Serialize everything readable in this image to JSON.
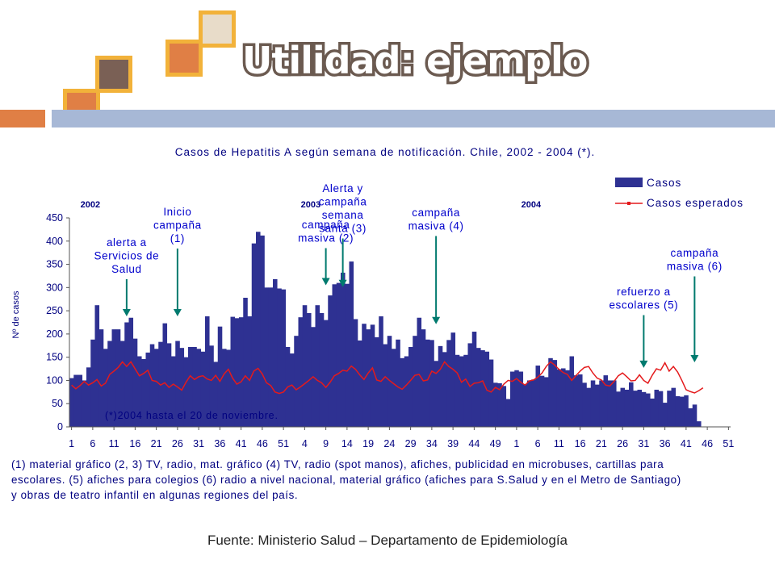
{
  "slide": {
    "title": "Utilidad: ejemplo",
    "source": "Fuente: Ministerio Salud – Departamento de Epidemiología",
    "caption_lines": [
      "(1) material gráfico    (2, 3) TV, radio, mat. gráfico   (4) TV, radio (spot manos), afiches, publicidad en microbuses, cartillas para",
      "escolares.      (5) afiches para colegios      (6) radio a nivel nacional, material gráfico (afiches para S.Salud y en el Metro de Santiago)",
      "y obras de teatro infantil en algunas regiones del país."
    ],
    "colors": {
      "title_outline": "#6b5a50",
      "orange": "#e07f45",
      "gold": "#f2b23a",
      "brown": "#7a6055",
      "cream": "#e8dcc9",
      "blue_bar": "#a7b8d6"
    }
  },
  "chart_data": {
    "type": "bar",
    "title": "Casos de Hepatitis A  según semana de notificación. Chile, 2002 - 2004 (*).",
    "ylabel": "Nº de casos",
    "ylim": [
      0,
      450
    ],
    "yticks": [
      0,
      50,
      100,
      150,
      200,
      250,
      300,
      350,
      400,
      450
    ],
    "xtick_labels": [
      "1",
      "6",
      "11",
      "16",
      "21",
      "26",
      "31",
      "36",
      "41",
      "46",
      "51",
      "4",
      "9",
      "14",
      "19",
      "24",
      "29",
      "34",
      "39",
      "44",
      "49",
      "1",
      "6",
      "11",
      "16",
      "21",
      "26",
      "31",
      "36",
      "41",
      "46",
      "51"
    ],
    "year_labels": [
      {
        "label": "2002",
        "week_index": 1
      },
      {
        "label": "2003",
        "week_index": 53
      },
      {
        "label": "2004",
        "week_index": 105
      }
    ],
    "note": "(*)2004  hasta el 20 de noviembre.",
    "legend": {
      "position": "top-right",
      "entries": [
        "Casos",
        "Casos esperados"
      ]
    },
    "colors": {
      "bars": "#2e3192",
      "expected": "#e41a1c",
      "annotation": "#0000cc",
      "arrow": "#007a6e"
    },
    "series": [
      {
        "name": "Casos",
        "type": "bar",
        "values": [
          105,
          112,
          112,
          100,
          128,
          188,
          262,
          210,
          168,
          185,
          210,
          210,
          185,
          225,
          235,
          190,
          152,
          146,
          160,
          178,
          168,
          183,
          223,
          180,
          152,
          185,
          170,
          150,
          172,
          172,
          168,
          162,
          238,
          175,
          140,
          216,
          168,
          166,
          237,
          234,
          236,
          278,
          238,
          395,
          420,
          412,
          300,
          300,
          318,
          298,
          296,
          172,
          158,
          196,
          236,
          262,
          245,
          215,
          262,
          245,
          230,
          283,
          307,
          310,
          332,
          308,
          356,
          232,
          186,
          222,
          210,
          220,
          193,
          238,
          178,
          196,
          168,
          188,
          148,
          152,
          172,
          196,
          235,
          210,
          188,
          187,
          142,
          174,
          161,
          187,
          203,
          155,
          152,
          155,
          180,
          205,
          170,
          165,
          162,
          145,
          95,
          94,
          88,
          60,
          119,
          122,
          119,
          92,
          100,
          102,
          132,
          110,
          107,
          148,
          144,
          124,
          126,
          122,
          152,
          111,
          113,
          95,
          84,
          100,
          91,
          100,
          111,
          100,
          100,
          76,
          84,
          80,
          96,
          78,
          80,
          75,
          72,
          61,
          80,
          77,
          52,
          78,
          84,
          66,
          65,
          68,
          40,
          48,
          12
        ]
      },
      {
        "name": "Casos esperados",
        "type": "line",
        "values": [
          90,
          82,
          89,
          98,
          90,
          95,
          102,
          88,
          94,
          113,
          120,
          128,
          140,
          130,
          140,
          125,
          110,
          115,
          122,
          100,
          98,
          90,
          95,
          85,
          92,
          86,
          79,
          96,
          110,
          102,
          108,
          110,
          103,
          100,
          111,
          98,
          114,
          124,
          105,
          92,
          97,
          110,
          100,
          120,
          126,
          114,
          95,
          89,
          75,
          72,
          75,
          86,
          90,
          80,
          86,
          93,
          100,
          108,
          100,
          95,
          85,
          96,
          110,
          115,
          122,
          120,
          131,
          124,
          112,
          102,
          116,
          127,
          101,
          98,
          108,
          100,
          93,
          86,
          81,
          90,
          100,
          111,
          113,
          99,
          101,
          120,
          115,
          124,
          140,
          130,
          124,
          116,
          96,
          103,
          87,
          94,
          95,
          99,
          79,
          75,
          85,
          80,
          92,
          100,
          98,
          104,
          96,
          90,
          99,
          101,
          107,
          116,
          130,
          140,
          133,
          124,
          117,
          113,
          100,
          110,
          120,
          128,
          130,
          116,
          105,
          101,
          90,
          88,
          98,
          110,
          116,
          108,
          99,
          100,
          112,
          100,
          94,
          111,
          125,
          122,
          138,
          120,
          130,
          118,
          100,
          80,
          76,
          73,
          78,
          84
        ]
      }
    ],
    "annotations": [
      {
        "text_lines": [
          "alerta a",
          "Servicios de",
          "Salud"
        ],
        "week_index": 13,
        "arrow_tip": 238
      },
      {
        "text_lines": [
          "Inicio",
          "campaña",
          "(1)"
        ],
        "week_index": 25,
        "arrow_tip": 238
      },
      {
        "text_lines": [
          "campaña",
          "masiva (2)"
        ],
        "week_index": 60,
        "arrow_tip": 305
      },
      {
        "text_lines": [
          "Alerta y",
          "campaña",
          "semana",
          "santa (3)"
        ],
        "week_index": 64,
        "arrow_tip": 301
      },
      {
        "text_lines": [
          "campaña",
          "masiva (4)"
        ],
        "week_index": 86,
        "arrow_tip": 221
      },
      {
        "text_lines": [
          "refuerzo a",
          "escolares (5)"
        ],
        "week_index": 135,
        "arrow_tip": 127
      },
      {
        "text_lines": [
          "campaña",
          "masiva (6)"
        ],
        "week_index": 147,
        "arrow_tip": 139
      }
    ]
  }
}
